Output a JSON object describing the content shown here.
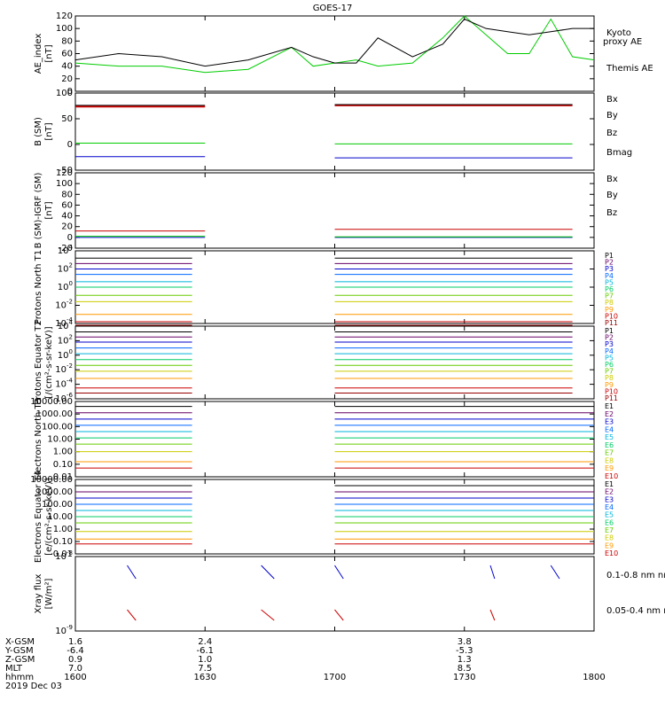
{
  "title": "GOES-17",
  "time_axis": {
    "start": "1600",
    "end": "1800",
    "tick_labels": [
      "1600",
      "1630",
      "1700",
      "1730",
      "1800"
    ],
    "date": "2019 Dec 03"
  },
  "ephemeris": {
    "rows": [
      {
        "label": "X-GSM",
        "values": [
          "1.6",
          "2.4",
          "",
          "3.8",
          ""
        ]
      },
      {
        "label": "Y-GSM",
        "values": [
          "-6.4",
          "-6.1",
          "",
          "-5.3",
          ""
        ]
      },
      {
        "label": "Z-GSM",
        "values": [
          "0.9",
          "1.0",
          "",
          "1.3",
          ""
        ]
      },
      {
        "label": "MLT",
        "values": [
          "7.0",
          "7.5",
          "",
          "8.5",
          ""
        ]
      },
      {
        "label": "hhmm",
        "values": [
          "1600",
          "1630",
          "1700",
          "1730",
          "1800"
        ]
      }
    ],
    "date": "2019 Dec 03"
  },
  "chart_data": [
    {
      "type": "line",
      "ylabel": "AE_index [nT]",
      "ylim": [
        0,
        120
      ],
      "yticks": [
        "0",
        "20",
        "40",
        "60",
        "80",
        "100",
        "120"
      ],
      "x": [
        1600,
        1610,
        1620,
        1630,
        1640,
        1650,
        1655,
        1700,
        1705,
        1710,
        1718,
        1725,
        1730,
        1735,
        1740,
        1745,
        1750,
        1755,
        1800
      ],
      "series": [
        {
          "name": "Kyoto proxy AE",
          "color": "#00cc00",
          "values": [
            45,
            40,
            40,
            30,
            35,
            70,
            40,
            45,
            50,
            40,
            45,
            85,
            120,
            90,
            60,
            60,
            115,
            55,
            50
          ]
        },
        {
          "name": "Themis AE",
          "color": "#000000",
          "values": [
            50,
            60,
            55,
            40,
            50,
            70,
            55,
            45,
            45,
            85,
            55,
            75,
            115,
            100,
            95,
            90,
            95,
            100,
            100
          ]
        }
      ]
    },
    {
      "type": "line",
      "ylabel": "B (SM) [nT]",
      "ylim": [
        -50,
        150
      ],
      "yticks": [
        "-50",
        "0",
        "50",
        "100"
      ],
      "segments": [
        [
          1600,
          1630
        ],
        [
          1700,
          1755
        ]
      ],
      "series": [
        {
          "name": "Bx",
          "color": "#0000cc",
          "values": [
            -15,
            -18
          ]
        },
        {
          "name": "By",
          "color": "#00cc00",
          "values": [
            20,
            18
          ]
        },
        {
          "name": "Bz",
          "color": "#cc0000",
          "values": [
            115,
            118
          ]
        },
        {
          "name": "Bmag",
          "color": "#000000",
          "values": [
            118,
            120
          ]
        }
      ]
    },
    {
      "type": "line",
      "ylabel": "B (SM)-IGRF (SM) [nT]",
      "ylim": [
        -20,
        120
      ],
      "yticks": [
        "-20",
        "0",
        "20",
        "40",
        "60",
        "80",
        "100",
        "120"
      ],
      "segments": [
        [
          1600,
          1630
        ],
        [
          1700,
          1755
        ]
      ],
      "series": [
        {
          "name": "Bx",
          "color": "#0000cc",
          "values": [
            0,
            0
          ]
        },
        {
          "name": "By",
          "color": "#00cc00",
          "values": [
            2,
            1
          ]
        },
        {
          "name": "Bz",
          "color": "#cc0000",
          "values": [
            12,
            15
          ]
        }
      ]
    },
    {
      "type": "line",
      "ylabel": "Protons North T1",
      "ylog": [
        -4,
        4
      ],
      "yticks": [
        "10^-4",
        "10^-2",
        "10^0",
        "10^2",
        "10^4"
      ],
      "segments": [
        [
          1600,
          1627
        ],
        [
          1700,
          1755
        ]
      ],
      "channels": [
        "P1",
        "P2",
        "P3",
        "P4",
        "P5",
        "P6",
        "P7",
        "P8",
        "P9",
        "P10",
        "P11"
      ],
      "log_levels": [
        3.2,
        2.6,
        2.0,
        1.4,
        0.6,
        0.0,
        -0.9,
        -1.6,
        -3.0,
        -3.8,
        -4.2
      ]
    },
    {
      "type": "line",
      "ylabel": "Protons Equator T2 [/(cm²-s-sr-keV)]",
      "ylog": [
        -6,
        4
      ],
      "yticks": [
        "10^-6",
        "10^-4",
        "10^-2",
        "10^0",
        "10^2",
        "10^4"
      ],
      "segments": [
        [
          1600,
          1627
        ],
        [
          1700,
          1755
        ]
      ],
      "channels": [
        "P1",
        "P2",
        "P3",
        "P4",
        "P5",
        "P6",
        "P7",
        "P8",
        "P9",
        "P10",
        "P11"
      ],
      "log_levels": [
        3.2,
        2.5,
        1.8,
        1.0,
        0.2,
        -0.6,
        -1.4,
        -2.2,
        -3.2,
        -4.5,
        -5.2
      ]
    },
    {
      "type": "line",
      "ylabel": "Electrons North T3",
      "ylog": [
        -2,
        4
      ],
      "yticks": [
        "0.01",
        "0.10",
        "1.00",
        "10.00",
        "100.00",
        "1000.00",
        "10000.00"
      ],
      "segments": [
        [
          1600,
          1627
        ],
        [
          1700,
          1800
        ]
      ],
      "channels": [
        "E1",
        "E2",
        "E3",
        "E4",
        "E5",
        "E6",
        "E7",
        "E8",
        "E9",
        "E10"
      ],
      "log_levels": [
        3.6,
        3.1,
        2.6,
        2.1,
        1.6,
        1.1,
        0.6,
        0.0,
        -0.8,
        -1.3
      ]
    },
    {
      "type": "line",
      "ylabel": "Electrons Equator T4 [e/(cm²-s-sr-keV)]",
      "ylog": [
        -2,
        4
      ],
      "yticks": [
        "0.01",
        "0.10",
        "1.00",
        "10.00",
        "100.00",
        "1000.00",
        "10000.00"
      ],
      "segments": [
        [
          1600,
          1627
        ],
        [
          1700,
          1800
        ]
      ],
      "channels": [
        "E1",
        "E2",
        "E3",
        "E4",
        "E5",
        "E6",
        "E7",
        "E8",
        "E9",
        "E10"
      ],
      "log_levels": [
        3.5,
        3.0,
        2.5,
        2.0,
        1.5,
        1.0,
        0.5,
        -0.2,
        -0.8,
        -1.2
      ]
    },
    {
      "type": "line",
      "ylabel": "Xray flux [W/m²]",
      "ylog": [
        -9,
        -8
      ],
      "yticks": [
        "10^-9",
        "10^-8"
      ],
      "series": [
        {
          "name": "0.1-0.8 nm",
          "color": "#cc0000"
        },
        {
          "name": "0.05-0.4 nm",
          "color": "#0000cc"
        }
      ]
    }
  ],
  "ae_legend": {
    "kyoto_label": "Kyoto proxy AE",
    "themis_label": "Themis AE"
  }
}
